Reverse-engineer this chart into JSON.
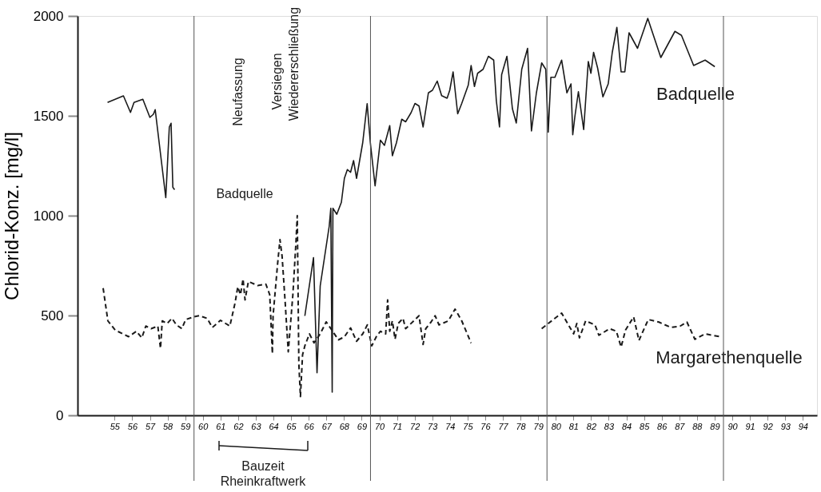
{
  "chart_data": {
    "type": "line",
    "ylabel": "Chlorid-Konz. [mg/l]",
    "xlim": [
      53.4,
      95.3
    ],
    "ylim": [
      0,
      2000
    ],
    "yticks": [
      0,
      500,
      1000,
      1500,
      2000
    ],
    "xticks": [
      {
        "value": 55.5,
        "label": "55"
      },
      {
        "value": 56.5,
        "label": "56"
      },
      {
        "value": 57.5,
        "label": "57"
      },
      {
        "value": 58.5,
        "label": "58"
      },
      {
        "value": 59.5,
        "label": "59"
      },
      {
        "value": 60.5,
        "label": "60"
      },
      {
        "value": 61.5,
        "label": "61"
      },
      {
        "value": 62.5,
        "label": "62"
      },
      {
        "value": 63.5,
        "label": "63"
      },
      {
        "value": 64.5,
        "label": "64"
      },
      {
        "value": 65.5,
        "label": "65"
      },
      {
        "value": 66.5,
        "label": "66"
      },
      {
        "value": 67.5,
        "label": "67"
      },
      {
        "value": 68.5,
        "label": "68"
      },
      {
        "value": 69.5,
        "label": "69"
      },
      {
        "value": 70.5,
        "label": "70"
      },
      {
        "value": 71.5,
        "label": "71"
      },
      {
        "value": 72.5,
        "label": "72"
      },
      {
        "value": 73.5,
        "label": "73"
      },
      {
        "value": 74.5,
        "label": "74"
      },
      {
        "value": 75.5,
        "label": "75"
      },
      {
        "value": 76.5,
        "label": "76"
      },
      {
        "value": 77.5,
        "label": "77"
      },
      {
        "value": 78.5,
        "label": "78"
      },
      {
        "value": 79.5,
        "label": "79"
      },
      {
        "value": 80.5,
        "label": "80"
      },
      {
        "value": 81.5,
        "label": "81"
      },
      {
        "value": 82.5,
        "label": "82"
      },
      {
        "value": 83.5,
        "label": "83"
      },
      {
        "value": 84.5,
        "label": "84"
      },
      {
        "value": 85.5,
        "label": "85"
      },
      {
        "value": 86.5,
        "label": "86"
      },
      {
        "value": 87.5,
        "label": "87"
      },
      {
        "value": 88.5,
        "label": "88"
      },
      {
        "value": 89.5,
        "label": "89"
      },
      {
        "value": 90.5,
        "label": "90"
      },
      {
        "value": 91.5,
        "label": "91"
      },
      {
        "value": 92.5,
        "label": "92"
      },
      {
        "value": 93.5,
        "label": "93"
      },
      {
        "value": 94.5,
        "label": "94"
      }
    ],
    "grid": false,
    "series": [
      {
        "name": "Badquelle",
        "color": "#1a1a1a",
        "line_style": "solid",
        "x": [
          55.1,
          56.0,
          56.4,
          56.6,
          57.1,
          57.5,
          57.7,
          57.8,
          58.4,
          58.6,
          58.7,
          58.8,
          58.9,
          62.0,
          66.28,
          66.77,
          66.97,
          67.15,
          67.66,
          67.75,
          67.83,
          67.87,
          68.09,
          68.35,
          68.52,
          68.69,
          68.87,
          69.04,
          69.21,
          69.56,
          69.81,
          69.99,
          70.26,
          70.56,
          70.79,
          71.09,
          71.24,
          71.47,
          71.77,
          71.99,
          72.3,
          72.52,
          72.75,
          72.98,
          73.28,
          73.51,
          73.78,
          74.03,
          74.34,
          74.49,
          74.68,
          74.94,
          75.17,
          75.54,
          75.7,
          75.89,
          76.07,
          76.38,
          76.68,
          76.98,
          77.13,
          77.31,
          77.43,
          77.73,
          78.04,
          78.26,
          78.57,
          78.9,
          79.12,
          79.4,
          79.7,
          79.93,
          80.07,
          80.22,
          80.45,
          80.83,
          81.13,
          81.36,
          81.46,
          81.58,
          81.78,
          82.08,
          82.34,
          82.49,
          82.64,
          82.87,
          83.17,
          83.47,
          83.7,
          83.96,
          84.2,
          84.41,
          84.65,
          85.13,
          85.71,
          86.45,
          87.25,
          87.62,
          88.31,
          88.96,
          89.51
        ],
        "values": [
          1567,
          1600,
          1517,
          1567,
          1583,
          1492,
          1508,
          1531,
          1090,
          1444,
          1463,
          1142,
          1130,
          null,
          498,
          790,
          213,
          648,
          947,
          1037,
          116,
          1037,
          1007,
          1067,
          1187,
          1231,
          1217,
          1276,
          1187,
          1366,
          1561,
          1366,
          1149,
          1378,
          1352,
          1451,
          1300,
          1365,
          1483,
          1470,
          1516,
          1562,
          1549,
          1444,
          1615,
          1628,
          1674,
          1601,
          1588,
          1628,
          1720,
          1510,
          1562,
          1654,
          1752,
          1647,
          1713,
          1733,
          1798,
          1779,
          1575,
          1444,
          1706,
          1798,
          1536,
          1464,
          1733,
          1838,
          1424,
          1615,
          1765,
          1733,
          1418,
          1693,
          1693,
          1779,
          1615,
          1660,
          1405,
          1496,
          1621,
          1431,
          1772,
          1713,
          1818,
          1739,
          1595,
          1660,
          1818,
          1943,
          1720,
          1720,
          1916,
          1838,
          1988,
          1792,
          1923,
          1903,
          1752,
          1779,
          1746
        ]
      },
      {
        "name": "Margarethenquelle",
        "color": "#1a1a1a",
        "line_style": "dashed",
        "x": [
          54.85,
          55.12,
          55.53,
          56.29,
          56.74,
          57.04,
          57.27,
          57.57,
          57.95,
          58.1,
          58.2,
          58.48,
          58.75,
          59.0,
          59.31,
          59.53,
          59.99,
          60.29,
          60.74,
          61.04,
          61.5,
          62.03,
          62.33,
          62.48,
          62.63,
          62.78,
          62.89,
          63.08,
          63.61,
          64.07,
          64.29,
          64.44,
          64.48,
          64.73,
          64.87,
          64.99,
          65.16,
          65.34,
          65.6,
          65.77,
          65.85,
          65.91,
          65.94,
          66.03,
          66.15,
          66.28,
          66.54,
          66.8,
          67.15,
          67.49,
          67.84,
          68.18,
          68.52,
          68.87,
          69.21,
          69.56,
          69.82,
          70.07,
          70.33,
          70.56,
          70.86,
          70.97,
          71.09,
          71.24,
          71.39,
          71.57,
          71.84,
          71.99,
          72.45,
          72.75,
          72.98,
          73.13,
          73.43,
          73.66,
          73.88,
          74.41,
          74.79,
          75.17,
          75.7,
          77.5,
          79.7,
          80.45,
          80.83,
          81.51,
          81.69,
          81.84,
          82.19,
          82.72,
          82.94,
          83.55,
          83.93,
          84.2,
          84.45,
          84.91,
          85.21,
          85.74,
          86.34,
          87.02,
          87.55,
          87.93,
          88.38,
          88.96,
          89.79
        ],
        "values": [
          637,
          473,
          427,
          394,
          421,
          388,
          447,
          434,
          447,
          335,
          473,
          460,
          486,
          453,
          434,
          480,
          493,
          499,
          486,
          440,
          476,
          447,
          565,
          644,
          604,
          683,
          578,
          670,
          650,
          657,
          604,
          309,
          498,
          753,
          880,
          797,
          573,
          318,
          603,
          857,
          1000,
          498,
          258,
          94,
          303,
          348,
          408,
          363,
          408,
          468,
          423,
          378,
          393,
          438,
          371,
          408,
          453,
          348,
          394,
          421,
          408,
          578,
          421,
          473,
          381,
          460,
          486,
          434,
          473,
          499,
          355,
          434,
          467,
          499,
          453,
          473,
          532,
          473,
          362,
          null,
          434,
          486,
          512,
          408,
          460,
          388,
          473,
          453,
          401,
          434,
          421,
          342,
          427,
          493,
          375,
          480,
          467,
          440,
          447,
          467,
          381,
          408,
          394
        ]
      }
    ],
    "ref_lines": [
      {
        "axis": "x",
        "value": 60,
        "color": "#555555"
      },
      {
        "axis": "x",
        "value": 70,
        "color": "#555555"
      },
      {
        "axis": "x",
        "value": 80,
        "color": "#555555"
      },
      {
        "axis": "x",
        "value": 90,
        "color": "#555555"
      }
    ],
    "annotations": [
      "Neufassung",
      "Badquelle",
      "Versiegen",
      "Wiedererschließung",
      "Bauzeit Rheinkraftwerk"
    ]
  }
}
